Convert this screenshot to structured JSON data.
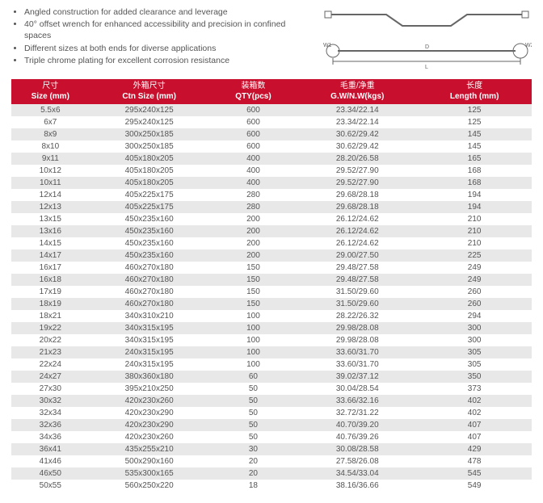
{
  "features": [
    "Angled construction for added clearance and leverage",
    "40° offset wrench for enhanced accessibility and precision in confined spaces",
    "Different sizes at both ends for diverse applications",
    "Triple chrome plating for excellent corrosion resistance"
  ],
  "diagram": {
    "labels": {
      "w1": "W1",
      "w2": "W2",
      "L": "L",
      "D": "D"
    },
    "stroke": "#666666"
  },
  "table": {
    "header_bg": "#c8102e",
    "header_fg": "#ffffff",
    "row_even_bg": "#e8e8e8",
    "row_odd_bg": "#ffffff",
    "columns": [
      {
        "cn": "尺寸",
        "en": "Size (mm)"
      },
      {
        "cn": "外箱尺寸",
        "en": "Ctn Size (mm)"
      },
      {
        "cn": "装箱数",
        "en": "QTY(pcs)"
      },
      {
        "cn": "毛重/净重",
        "en": "G.W/N.W(kgs)"
      },
      {
        "cn": "长度",
        "en": "Length (mm)"
      }
    ],
    "rows": [
      [
        "5.5x6",
        "295x240x125",
        "600",
        "23.34/22.14",
        "125"
      ],
      [
        "6x7",
        "295x240x125",
        "600",
        "23.34/22.14",
        "125"
      ],
      [
        "8x9",
        "300x250x185",
        "600",
        "30.62/29.42",
        "145"
      ],
      [
        "8x10",
        "300x250x185",
        "600",
        "30.62/29.42",
        "145"
      ],
      [
        "9x11",
        "405x180x205",
        "400",
        "28.20/26.58",
        "165"
      ],
      [
        "10x12",
        "405x180x205",
        "400",
        "29.52/27.90",
        "168"
      ],
      [
        "10x11",
        "405x180x205",
        "400",
        "29.52/27.90",
        "168"
      ],
      [
        "12x14",
        "405x225x175",
        "280",
        "29.68/28.18",
        "194"
      ],
      [
        "12x13",
        "405x225x175",
        "280",
        "29.68/28.18",
        "194"
      ],
      [
        "13x15",
        "450x235x160",
        "200",
        "26.12/24.62",
        "210"
      ],
      [
        "13x16",
        "450x235x160",
        "200",
        "26.12/24.62",
        "210"
      ],
      [
        "14x15",
        "450x235x160",
        "200",
        "26.12/24.62",
        "210"
      ],
      [
        "14x17",
        "450x235x160",
        "200",
        "29.00/27.50",
        "225"
      ],
      [
        "16x17",
        "460x270x180",
        "150",
        "29.48/27.58",
        "249"
      ],
      [
        "16x18",
        "460x270x180",
        "150",
        "29.48/27.58",
        "249"
      ],
      [
        "17x19",
        "460x270x180",
        "150",
        "31.50/29.60",
        "260"
      ],
      [
        "18x19",
        "460x270x180",
        "150",
        "31.50/29.60",
        "260"
      ],
      [
        "18x21",
        "340x310x210",
        "100",
        "28.22/26.32",
        "294"
      ],
      [
        "19x22",
        "340x315x195",
        "100",
        "29.98/28.08",
        "300"
      ],
      [
        "20x22",
        "340x315x195",
        "100",
        "29.98/28.08",
        "300"
      ],
      [
        "21x23",
        "240x315x195",
        "100",
        "33.60/31.70",
        "305"
      ],
      [
        "22x24",
        "240x315x195",
        "100",
        "33.60/31.70",
        "305"
      ],
      [
        "24x27",
        "380x360x180",
        "60",
        "39.02/37.12",
        "350"
      ],
      [
        "27x30",
        "395x210x250",
        "50",
        "30.04/28.54",
        "373"
      ],
      [
        "30x32",
        "420x230x260",
        "50",
        "33.66/32.16",
        "402"
      ],
      [
        "32x34",
        "420x230x290",
        "50",
        "32.72/31.22",
        "402"
      ],
      [
        "32x36",
        "420x230x290",
        "50",
        "40.70/39.20",
        "407"
      ],
      [
        "34x36",
        "420x230x260",
        "50",
        "40.76/39.26",
        "407"
      ],
      [
        "36x41",
        "435x255x210",
        "30",
        "30.08/28.58",
        "429"
      ],
      [
        "41x46",
        "500x290x160",
        "20",
        "27.58/26.08",
        "478"
      ],
      [
        "46x50",
        "535x300x165",
        "20",
        "34.54/33.04",
        "545"
      ],
      [
        "50x55",
        "560x250x220",
        "18",
        "38.16/36.66",
        "549"
      ]
    ]
  }
}
